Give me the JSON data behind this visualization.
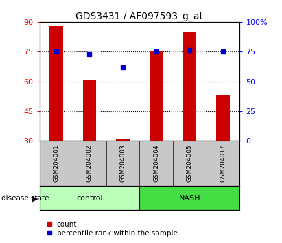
{
  "title": "GDS3431 / AF097593_g_at",
  "samples": [
    "GSM204001",
    "GSM204002",
    "GSM204003",
    "GSM204004",
    "GSM204005",
    "GSM204017"
  ],
  "counts": [
    88,
    61,
    31,
    75,
    85,
    53
  ],
  "percentiles": [
    75,
    73,
    62,
    75,
    76,
    75
  ],
  "bar_color": "#CC0000",
  "dot_color": "#0000CC",
  "left_ylim": [
    30,
    90
  ],
  "left_yticks": [
    30,
    45,
    60,
    75,
    90
  ],
  "right_ylim": [
    0,
    100
  ],
  "right_yticks": [
    0,
    25,
    50,
    75,
    100
  ],
  "right_yticklabels": [
    "0",
    "25",
    "50",
    "75",
    "100%"
  ],
  "grid_values": [
    75,
    60,
    45
  ],
  "ctrl_color": "#BBFFBB",
  "nash_color": "#44DD44",
  "gray_color": "#C8C8C8",
  "legend_count_label": "count",
  "legend_percentile_label": "percentile rank within the sample",
  "disease_state_label": "disease state"
}
